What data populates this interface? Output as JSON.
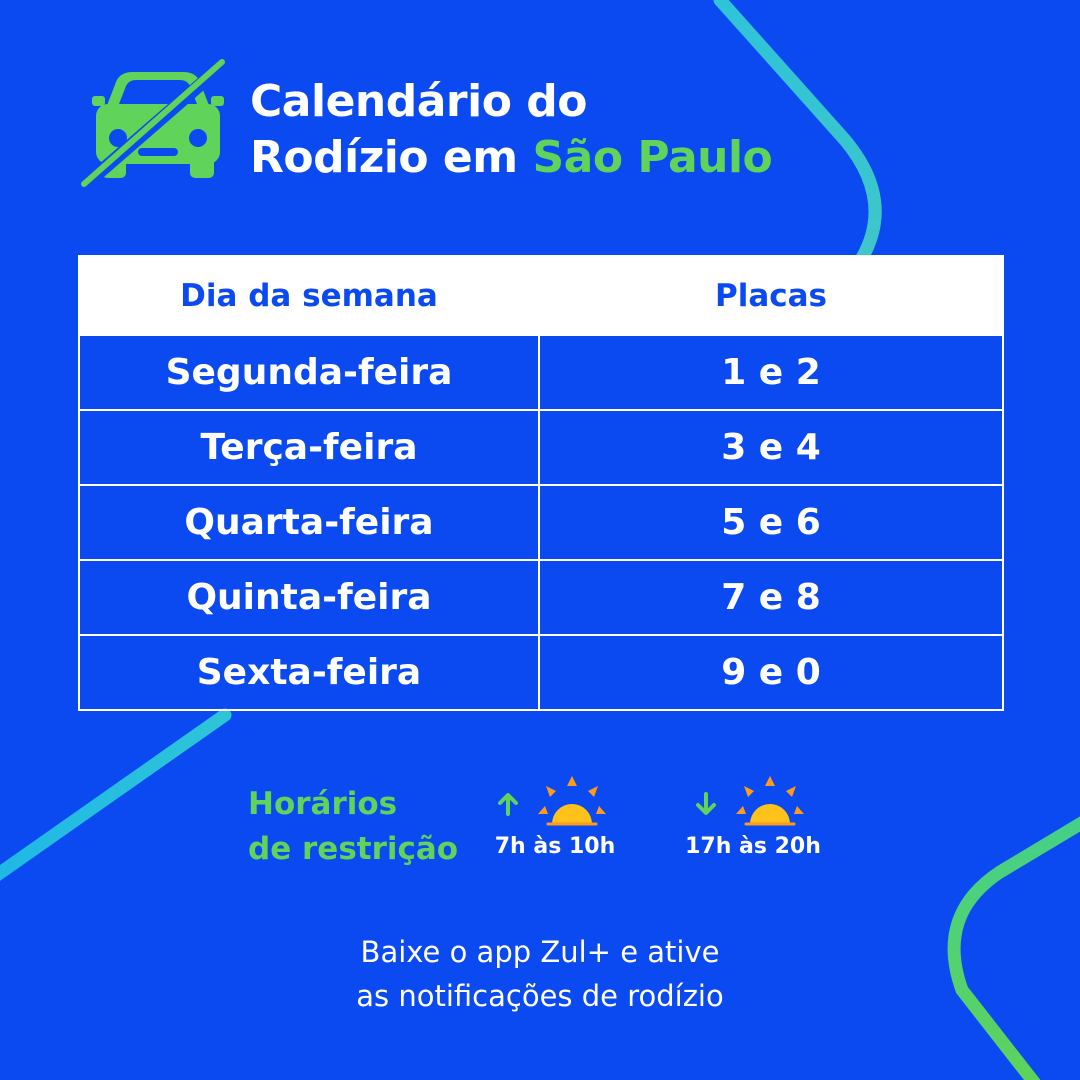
{
  "header": {
    "title_line1": "Calendário do",
    "title_line2_prefix": "Rodízio em",
    "title_line2_accent": "São Paulo",
    "icon": "car-crossed-icon"
  },
  "table": {
    "headers": [
      "Dia da semana",
      "Placas"
    ],
    "rows": [
      {
        "day": "Segunda-feira",
        "plates": "1 e 2"
      },
      {
        "day": "Terça-feira",
        "plates": "3 e 4"
      },
      {
        "day": "Quarta-feira",
        "plates": "5 e 6"
      },
      {
        "day": "Quinta-feira",
        "plates": "7 e 8"
      },
      {
        "day": "Sexta-feira",
        "plates": "9 e 0"
      }
    ]
  },
  "hours": {
    "title_line1": "Horários",
    "title_line2": "de restrição",
    "slots": [
      {
        "label": "7h às 10h",
        "icon": "sunrise-icon",
        "arrow": "arrow-up-icon"
      },
      {
        "label": "17h às 20h",
        "icon": "sunset-icon",
        "arrow": "arrow-down-icon"
      }
    ]
  },
  "footer": {
    "line1": "Baixe o app Zul+ e ative",
    "line2": "as notificações de rodízio"
  },
  "colors": {
    "background": "#0a4af0",
    "accent_green": "#5fd35a",
    "sun_yellow": "#ffc21a",
    "sun_orange": "#ff9a1a",
    "curve_cyan": "#2ec4d8"
  }
}
